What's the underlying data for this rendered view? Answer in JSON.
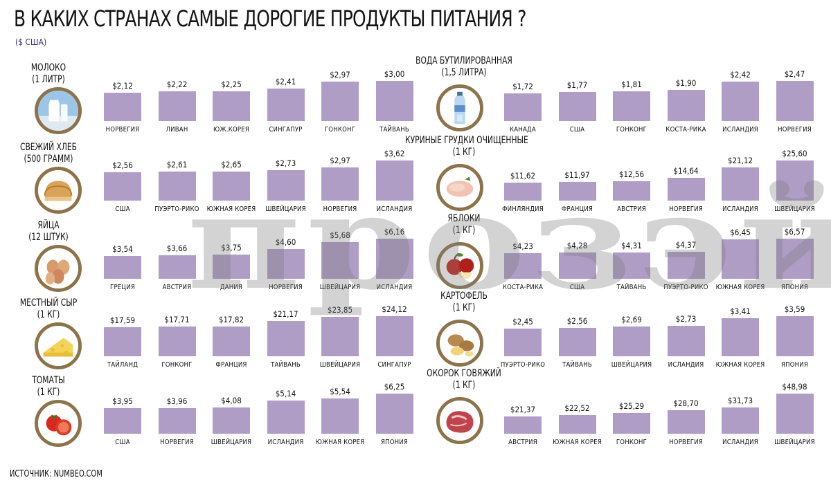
{
  "title": "В КАКИХ СТРАНАХ САМЫЕ ДОРОГИЕ ПРОДУКТЫ ПИТАНИЯ ?",
  "subtitle": "($ США)",
  "source": "ИСТОЧНИК: NUMBEO.COM",
  "watermark": "прозэй",
  "bar_color": "#b09dc6",
  "icon_ring_color": "#8c7349",
  "chart_data": [
    {
      "type": "bar",
      "title": "МОЛОКО",
      "subtitle": "(1 ЛИТР)",
      "icon": "milk-icon",
      "categories": [
        "НОРВЕГИЯ",
        "ЛИВАН",
        "ЮЖ.КОРЕЯ",
        "СИНГАПУР",
        "ГОНКОНГ",
        "ТАЙВАНЬ"
      ],
      "values": [
        2.12,
        2.22,
        2.25,
        2.41,
        2.97,
        3.0
      ],
      "labels": [
        "$2,12",
        "$2,22",
        "$2,25",
        "$2,41",
        "$2,97",
        "$3,00"
      ]
    },
    {
      "type": "bar",
      "title": "ВОДА БУТИЛИРОВАННАЯ",
      "subtitle": "(1,5 ЛИТРА)",
      "icon": "water-bottle-icon",
      "categories": [
        "КАНАДА",
        "США",
        "ГОНКОНГ",
        "КОСТА-РИКА",
        "ИСЛАНДИЯ",
        "НОРВЕГИЯ"
      ],
      "values": [
        1.72,
        1.77,
        1.81,
        1.9,
        2.42,
        2.47
      ],
      "labels": [
        "$1,72",
        "$1,77",
        "$1,81",
        "$1,90",
        "$2,42",
        "$2,47"
      ]
    },
    {
      "type": "bar",
      "title": "СВЕЖИЙ ХЛЕБ",
      "subtitle": "(500 ГРАММ)",
      "icon": "bread-icon",
      "categories": [
        "США",
        "ПУЭРТО-РИКО",
        "ЮЖНАЯ КОРЕЯ",
        "ШВЕЙЦАРИЯ",
        "НОРВЕГИЯ",
        "ИСЛАНДИЯ"
      ],
      "values": [
        2.56,
        2.61,
        2.65,
        2.73,
        2.97,
        3.62
      ],
      "labels": [
        "$2,56",
        "$2,61",
        "$2,65",
        "$2,73",
        "$2,97",
        "$3,62"
      ]
    },
    {
      "type": "bar",
      "title": "КУРИНЫЕ ГРУДКИ ОЧИЩЕННЫЕ",
      "subtitle": "(1 КГ)",
      "icon": "chicken-breast-icon",
      "categories": [
        "ФИНЛЯНДИЯ",
        "ФРАНЦИЯ",
        "АВСТРИЯ",
        "НОРВЕГИЯ",
        "ИСЛАНДИЯ",
        "ШВЕЙЦАРИЯ"
      ],
      "values": [
        11.62,
        11.97,
        12.56,
        14.64,
        21.12,
        25.6
      ],
      "labels": [
        "$11,62",
        "$11,97",
        "$12,56",
        "$14,64",
        "$21,12",
        "$25,60"
      ]
    },
    {
      "type": "bar",
      "title": "ЯЙЦА",
      "subtitle": "(12 ШТУК)",
      "icon": "eggs-icon",
      "categories": [
        "ГРЕЦИЯ",
        "АВСТРИЯ",
        "ДАНИЯ",
        "НОРВЕГИЯ",
        "ШВЕЙЦАРИЯ",
        "ИСЛАНДИЯ"
      ],
      "values": [
        3.54,
        3.66,
        3.75,
        4.6,
        5.68,
        6.16
      ],
      "labels": [
        "$3,54",
        "$3,66",
        "$3,75",
        "$4,60",
        "$5,68",
        "$6,16"
      ]
    },
    {
      "type": "bar",
      "title": "ЯБЛОКИ",
      "subtitle": "(1 КГ)",
      "icon": "apples-icon",
      "categories": [
        "КОСТА-РИКА",
        "США",
        "ТАЙВАНЬ",
        "ПУЭРТО-РИКО",
        "ЮЖНАЯ КОРЕЯ",
        "ЯПОНИЯ"
      ],
      "values": [
        4.23,
        4.28,
        4.31,
        4.37,
        6.45,
        6.57
      ],
      "labels": [
        "$4,23",
        "$4,28",
        "$4,31",
        "$4,37",
        "$6,45",
        "$6,57"
      ]
    },
    {
      "type": "bar",
      "title": "МЕСТНЫЙ СЫР",
      "subtitle": "(1 КГ)",
      "icon": "cheese-icon",
      "categories": [
        "ТАЙЛАНД",
        "ГОНКОНГ",
        "ФРАНЦИЯ",
        "ТАЙВАНЬ",
        "ШВЕЙЦАРИЯ",
        "СИНГАПУР"
      ],
      "values": [
        17.59,
        17.71,
        17.82,
        21.17,
        23.85,
        24.12
      ],
      "labels": [
        "$17,59",
        "$17,71",
        "$17,82",
        "$21,17",
        "$23,85",
        "$24,12"
      ]
    },
    {
      "type": "bar",
      "title": "КАРТОФЕЛЬ",
      "subtitle": "(1 КГ)",
      "icon": "potatoes-icon",
      "categories": [
        "ПУЭРТО-РИКО",
        "ТАЙВАНЬ",
        "ШВЕЙЦАРИЯ",
        "ИСЛАНДИЯ",
        "ЮЖНАЯ КОРЕЯ",
        "ЯПОНИЯ"
      ],
      "values": [
        2.45,
        2.56,
        2.69,
        2.73,
        3.41,
        3.59
      ],
      "labels": [
        "$2,45",
        "$2,56",
        "$2,69",
        "$2,73",
        "$3,41",
        "$3,59"
      ]
    },
    {
      "type": "bar",
      "title": "ТОМАТЫ",
      "subtitle": "(1 КГ)",
      "icon": "tomatoes-icon",
      "categories": [
        "США",
        "НОРВЕГИЯ",
        "ШВЕЙЦАРИЯ",
        "ИСЛАНДИЯ",
        "ЮЖНАЯ КОРЕЯ",
        "ЯПОНИЯ"
      ],
      "values": [
        3.95,
        3.96,
        4.08,
        5.14,
        5.54,
        6.25
      ],
      "labels": [
        "$3,95",
        "$3,96",
        "$4,08",
        "$5,14",
        "$5,54",
        "$6,25"
      ]
    },
    {
      "type": "bar",
      "title": "ОКОРОК ГОВЯЖИЙ",
      "subtitle": "(1 КГ)",
      "icon": "beef-icon",
      "categories": [
        "АВСТРИЯ",
        "ЮЖНАЯ КОРЕЯ",
        "ГОНКОНГ",
        "НОРВЕГИЯ",
        "ИСЛАНДИЯ",
        "ШВЕЙЦАРИЯ"
      ],
      "values": [
        21.37,
        22.52,
        25.29,
        28.7,
        31.73,
        48.98
      ],
      "labels": [
        "$21,37",
        "$22,52",
        "$25,29",
        "$28,70",
        "$31,73",
        "$48,98"
      ]
    }
  ]
}
